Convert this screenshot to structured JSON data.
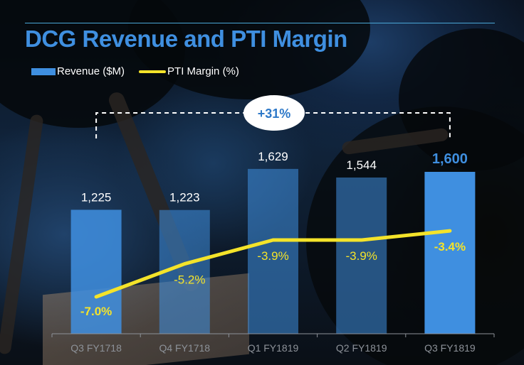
{
  "chart_data": {
    "type": "bar",
    "title": "DCG Revenue and PTI Margin",
    "categories": [
      "Q3 FY1718",
      "Q4 FY1718",
      "Q1 FY1819",
      "Q2 FY1819",
      "Q3 FY1819"
    ],
    "series": [
      {
        "name": "Revenue ($M)",
        "type": "bar",
        "values": [
          1225,
          1223,
          1629,
          1544,
          1600
        ],
        "labels": [
          "1,225",
          "1,223",
          "1,629",
          "1,544",
          "1,600"
        ],
        "color": "#3f8fe0"
      },
      {
        "name": "PTI Margin (%)",
        "type": "line",
        "values": [
          -7.0,
          -5.2,
          -3.9,
          -3.9,
          -3.4
        ],
        "labels": [
          "-7.0%",
          "-5.2%",
          "-3.9%",
          "-3.9%",
          "-3.4%"
        ],
        "color": "#f4e32a"
      }
    ],
    "highlight_index": 4,
    "annotation": {
      "text": "+31%",
      "from_category": "Q3 FY1718",
      "to_category": "Q3 FY1819"
    },
    "legend": {
      "position": "top-left",
      "entries": [
        "Revenue ($M)",
        "PTI Margin (%)"
      ]
    },
    "xlabel": "",
    "ylabel": "",
    "grid": false
  },
  "header": {
    "title": "DCG Revenue and PTI Margin"
  },
  "legend": {
    "revenue_label": "Revenue ($M)",
    "margin_label": "PTI Margin (%)"
  }
}
